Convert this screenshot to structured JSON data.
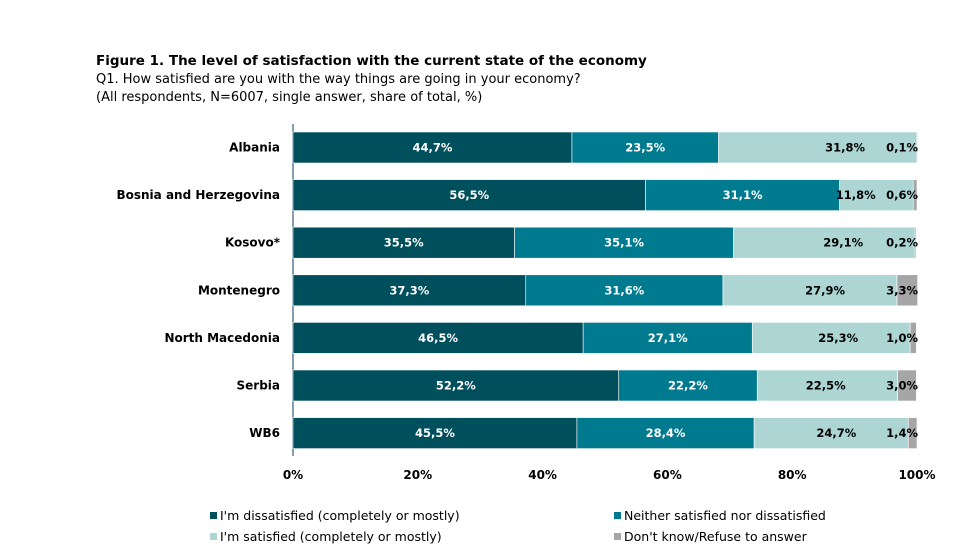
{
  "chart_data": {
    "type": "bar",
    "orientation": "horizontal",
    "stacked": true,
    "title": "Figure 1. The level of satisfaction with the current state of the economy",
    "subtitle": "Q1. How satisfied are you with the way things are going in your economy?",
    "note": "(All respondents, N=6007, single answer, share of total, %)",
    "categories": [
      "Albania",
      "Bosnia and Herzegovina",
      "Kosovo*",
      "Montenegro",
      "North Macedonia",
      "Serbia",
      "WB6"
    ],
    "series": [
      {
        "name": "I'm  dissatisfied (completely or mostly)",
        "color": "#004f5c",
        "values": [
          44.7,
          56.5,
          35.5,
          37.3,
          46.5,
          52.2,
          45.5
        ],
        "labels": [
          "44,7%",
          "56,5%",
          "35,5%",
          "37,3%",
          "46,5%",
          "52,2%",
          "45,5%"
        ]
      },
      {
        "name": "Neither satisfied nor dissatisfied",
        "color": "#007a8e",
        "values": [
          23.5,
          31.1,
          35.1,
          31.6,
          27.1,
          22.2,
          28.4
        ],
        "labels": [
          "23,5%",
          "31,1%",
          "35,1%",
          "31,6%",
          "27,1%",
          "22,2%",
          "28,4%"
        ]
      },
      {
        "name": "I'm satisfied (completely or mostly)",
        "color": "#add5d4",
        "values": [
          31.8,
          11.8,
          29.1,
          27.9,
          25.3,
          22.5,
          24.7
        ],
        "labels": [
          "31,8%",
          "11,8%",
          "29,1%",
          "27,9%",
          "25,3%",
          "22,5%",
          "24,7%"
        ]
      },
      {
        "name": "Don't know/Refuse to answer",
        "color": "#a6a6a6",
        "values": [
          0.1,
          0.6,
          0.2,
          3.3,
          1.0,
          3.0,
          1.4
        ],
        "labels": [
          "0,1%",
          "0,6%",
          "0,2%",
          "3,3%",
          "1,0%",
          "3,0%",
          "1,4%"
        ]
      }
    ],
    "xlim": [
      0,
      100
    ],
    "xticks": [
      "0%",
      "20%",
      "40%",
      "60%",
      "80%",
      "100%"
    ],
    "grid": false,
    "legend_position": "bottom"
  }
}
